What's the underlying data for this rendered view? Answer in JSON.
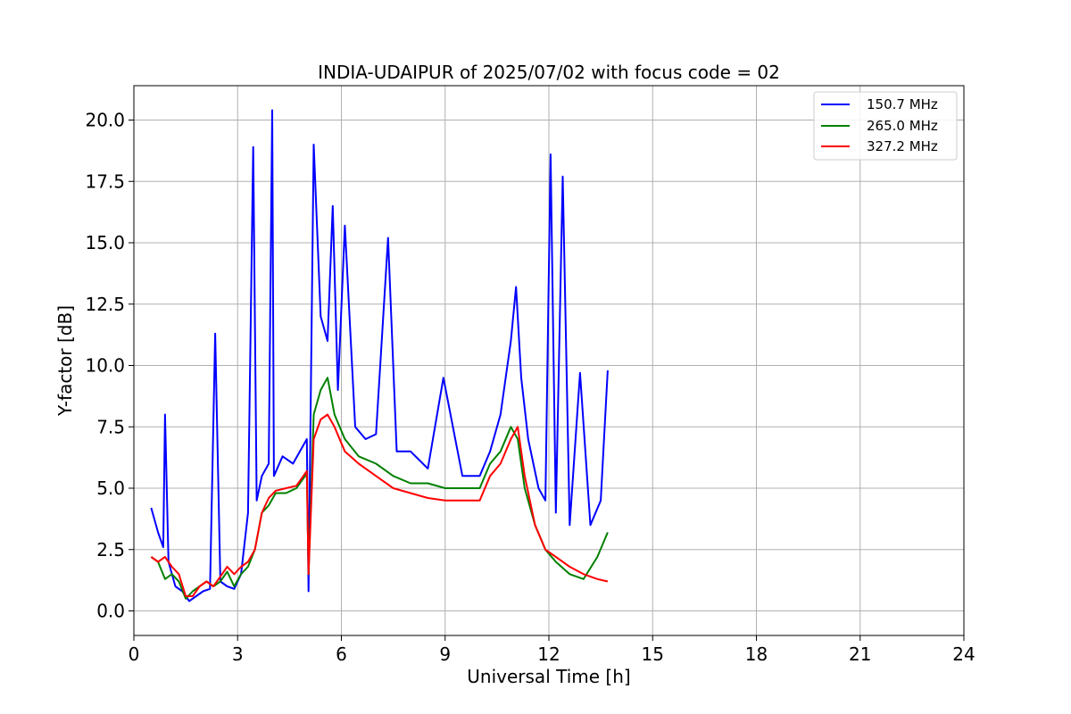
{
  "chart_data": {
    "type": "line",
    "title": "INDIA-UDAIPUR of 2025/07/02 with focus code = 02",
    "xlabel": "Universal Time [h]",
    "ylabel": "Y-factor [dB]",
    "xlim": [
      0,
      24
    ],
    "ylim": [
      -1.0,
      21.4
    ],
    "xticks": [
      0,
      3,
      6,
      9,
      12,
      15,
      18,
      21,
      24
    ],
    "xtick_labels": [
      "0",
      "3",
      "6",
      "9",
      "12",
      "15",
      "18",
      "21",
      "24"
    ],
    "yticks": [
      0,
      2.5,
      5,
      7.5,
      10,
      12.5,
      15,
      17.5,
      20
    ],
    "ytick_labels": [
      "0.0",
      "2.5",
      "5.0",
      "7.5",
      "10.0",
      "12.5",
      "15.0",
      "17.5",
      "20.0"
    ],
    "grid": true,
    "legend_position": "top-right",
    "series": [
      {
        "name": "150.7 MHz",
        "color": "#0000ff",
        "x": [
          0.5,
          0.7,
          0.85,
          0.9,
          1.0,
          1.2,
          1.4,
          1.6,
          1.8,
          2.0,
          2.2,
          2.35,
          2.5,
          2.7,
          2.9,
          3.1,
          3.3,
          3.45,
          3.55,
          3.7,
          3.9,
          4.0,
          4.05,
          4.3,
          4.6,
          4.8,
          5.0,
          5.05,
          5.2,
          5.4,
          5.6,
          5.75,
          5.9,
          6.1,
          6.4,
          6.7,
          7.0,
          7.35,
          7.6,
          8.0,
          8.5,
          8.95,
          9.5,
          10.0,
          10.3,
          10.6,
          10.9,
          11.05,
          11.2,
          11.4,
          11.7,
          11.9,
          12.05,
          12.2,
          12.4,
          12.6,
          12.9,
          13.2,
          13.5,
          13.7
        ],
        "y": [
          4.2,
          3.2,
          2.6,
          8.0,
          2.0,
          1.0,
          0.8,
          0.4,
          0.6,
          0.8,
          0.9,
          11.3,
          1.2,
          1.0,
          0.9,
          1.5,
          4.0,
          18.9,
          4.5,
          5.5,
          6.0,
          20.4,
          5.5,
          6.3,
          6.0,
          6.5,
          7.0,
          0.8,
          19.0,
          12.0,
          11.0,
          16.5,
          9.0,
          15.7,
          7.5,
          7.0,
          7.2,
          15.2,
          6.5,
          6.5,
          5.8,
          9.5,
          5.5,
          5.5,
          6.5,
          8.0,
          11.0,
          13.2,
          9.5,
          7.0,
          5.0,
          4.5,
          18.6,
          4.0,
          17.7,
          3.5,
          9.7,
          3.5,
          4.5,
          9.8
        ]
      },
      {
        "name": "265.0 MHz",
        "color": "#008000",
        "x": [
          0.5,
          0.7,
          0.9,
          1.1,
          1.3,
          1.5,
          1.7,
          1.9,
          2.1,
          2.3,
          2.5,
          2.7,
          2.9,
          3.1,
          3.3,
          3.5,
          3.7,
          3.9,
          4.1,
          4.4,
          4.7,
          5.0,
          5.05,
          5.2,
          5.4,
          5.6,
          5.8,
          6.1,
          6.5,
          7.0,
          7.5,
          8.0,
          8.5,
          9.0,
          9.5,
          10.0,
          10.3,
          10.6,
          10.9,
          11.1,
          11.3,
          11.6,
          11.9,
          12.2,
          12.6,
          13.0,
          13.4,
          13.7
        ],
        "y": [
          2.2,
          2.0,
          1.3,
          1.5,
          1.2,
          0.5,
          0.8,
          1.0,
          1.2,
          1.0,
          1.2,
          1.6,
          1.0,
          1.5,
          1.8,
          2.5,
          4.0,
          4.3,
          4.8,
          4.8,
          5.0,
          5.6,
          1.5,
          8.0,
          9.0,
          9.5,
          8.0,
          7.0,
          6.3,
          6.0,
          5.5,
          5.2,
          5.2,
          5.0,
          5.0,
          5.0,
          6.0,
          6.5,
          7.5,
          7.0,
          5.0,
          3.5,
          2.5,
          2.0,
          1.5,
          1.3,
          2.2,
          3.2
        ]
      },
      {
        "name": "327.2 MHz",
        "color": "#ff0000",
        "x": [
          0.5,
          0.7,
          0.9,
          1.1,
          1.3,
          1.5,
          1.7,
          1.9,
          2.1,
          2.3,
          2.5,
          2.7,
          2.9,
          3.1,
          3.3,
          3.5,
          3.7,
          3.9,
          4.1,
          4.4,
          4.7,
          5.0,
          5.05,
          5.2,
          5.4,
          5.6,
          5.8,
          6.1,
          6.5,
          7.0,
          7.5,
          8.0,
          8.5,
          9.0,
          9.5,
          10.0,
          10.3,
          10.6,
          10.9,
          11.1,
          11.3,
          11.6,
          11.9,
          12.2,
          12.6,
          13.0,
          13.4,
          13.7
        ],
        "y": [
          2.2,
          2.0,
          2.2,
          1.8,
          1.5,
          0.6,
          0.6,
          1.0,
          1.2,
          1.0,
          1.4,
          1.8,
          1.5,
          1.8,
          2.0,
          2.5,
          4.0,
          4.6,
          4.9,
          5.0,
          5.1,
          5.7,
          1.5,
          7.0,
          7.8,
          8.0,
          7.5,
          6.5,
          6.0,
          5.5,
          5.0,
          4.8,
          4.6,
          4.5,
          4.5,
          4.5,
          5.5,
          6.0,
          7.0,
          7.5,
          5.5,
          3.5,
          2.5,
          2.2,
          1.8,
          1.5,
          1.3,
          1.2
        ]
      }
    ]
  }
}
